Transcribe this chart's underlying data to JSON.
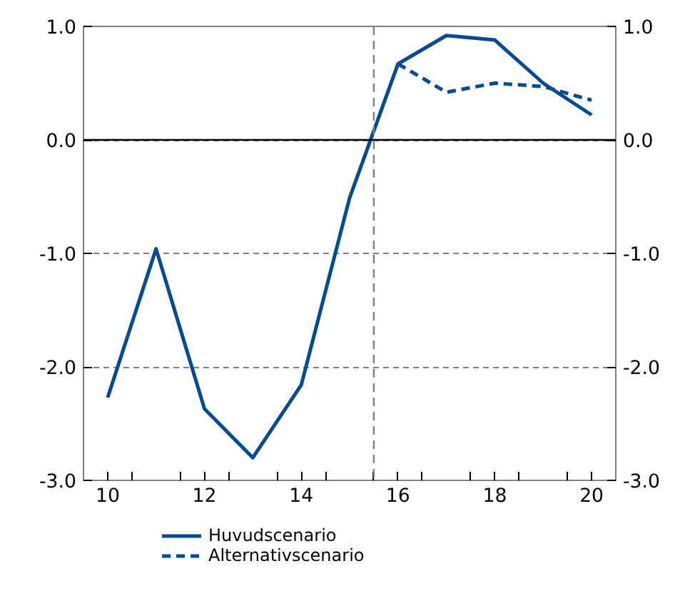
{
  "chart_data": {
    "type": "line",
    "x": [
      10,
      11,
      12,
      13,
      14,
      15,
      16,
      17,
      18,
      19,
      20
    ],
    "series": [
      {
        "name": "Huvudscenario",
        "color": "#004b93",
        "line_style": "solid",
        "values": [
          -2.27,
          -0.96,
          -2.37,
          -2.8,
          -2.16,
          -0.51,
          0.67,
          0.92,
          0.88,
          0.5,
          0.22
        ]
      },
      {
        "name": "Alternativscenario",
        "color": "#004b93",
        "line_style": "dashed",
        "values": [
          null,
          null,
          null,
          null,
          null,
          null,
          0.67,
          0.42,
          0.5,
          0.47,
          0.35
        ]
      }
    ],
    "xlim": [
      9.5,
      20.5
    ],
    "xticks": [
      {
        "value": 9.5,
        "label": null
      },
      {
        "value": 10,
        "label": "10"
      },
      {
        "value": 10.5,
        "label": null
      },
      {
        "value": 11.5,
        "label": null
      },
      {
        "value": 12,
        "label": "12"
      },
      {
        "value": 12.5,
        "label": null
      },
      {
        "value": 13.5,
        "label": null
      },
      {
        "value": 14,
        "label": "14"
      },
      {
        "value": 14.5,
        "label": null
      },
      {
        "value": 15.5,
        "label": null
      },
      {
        "value": 16,
        "label": "16"
      },
      {
        "value": 16.5,
        "label": null
      },
      {
        "value": 17.5,
        "label": null
      },
      {
        "value": 18,
        "label": "18"
      },
      {
        "value": 18.5,
        "label": null
      },
      {
        "value": 19.5,
        "label": null
      },
      {
        "value": 20,
        "label": "20"
      },
      {
        "value": 20.5,
        "label": null
      }
    ],
    "ylim": [
      -3,
      1
    ],
    "yticks": [
      {
        "value": -3,
        "label": "-3.0"
      },
      {
        "value": -2,
        "label": "-2.0"
      },
      {
        "value": -1,
        "label": "-1.0"
      },
      {
        "value": 0,
        "label": "0.0"
      },
      {
        "value": 1,
        "label": "1.0"
      }
    ],
    "y2lim": [
      -3,
      1
    ],
    "y2ticks": [
      {
        "value": -3,
        "label": "-3.0"
      },
      {
        "value": -2,
        "label": "-2.0"
      },
      {
        "value": -1,
        "label": "-1.0"
      },
      {
        "value": 0,
        "label": "0.0"
      },
      {
        "value": 1,
        "label": "1.0"
      }
    ],
    "ref_lines": [
      {
        "axis": "y",
        "value": 0,
        "label": null,
        "color": "#000000",
        "line_style": "solid"
      },
      {
        "axis": "x",
        "value": 15.5,
        "label": null,
        "color": "#7f7f7f",
        "line_style": "dashed"
      }
    ],
    "grid": "y",
    "legend": "bottom"
  }
}
